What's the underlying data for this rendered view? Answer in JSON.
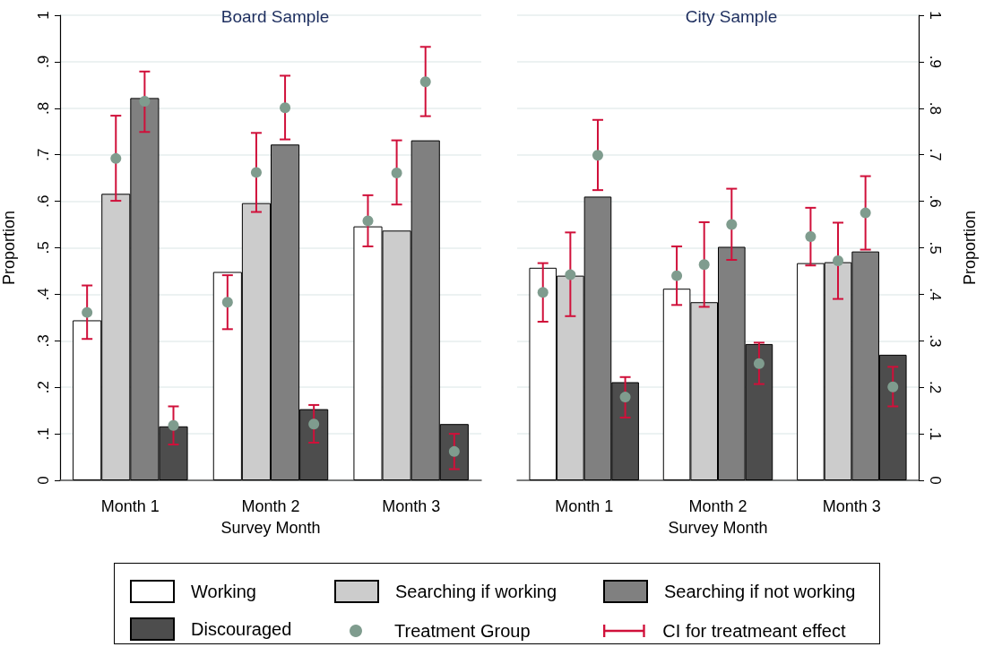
{
  "chart_data": [
    {
      "type": "bar",
      "title": "Board Sample",
      "xlabel": "Survey Month",
      "ylabel": "Proportion",
      "categories": [
        "Month 1",
        "Month 2",
        "Month 3"
      ],
      "series": [
        {
          "name": "Working",
          "color": "#ffffff",
          "values": [
            0.344,
            0.448,
            0.546
          ]
        },
        {
          "name": "Searching if working",
          "color": "#cccccc",
          "values": [
            0.616,
            0.596,
            0.537
          ]
        },
        {
          "name": "Searching if not working",
          "color": "#808080",
          "values": [
            0.822,
            0.722,
            0.731
          ]
        },
        {
          "name": "Discouraged",
          "color": "#4d4d4d",
          "values": [
            0.116,
            0.153,
            0.121
          ]
        },
        {
          "name": "Treatment Group",
          "type": "scatter",
          "color": "#7f9c8e",
          "x": [
            "Month 1",
            "Month 1",
            "Month 1",
            "Month 1",
            "Month 2",
            "Month 2",
            "Month 2",
            "Month 2",
            "Month 3",
            "Month 3",
            "Month 3",
            "Month 3"
          ],
          "values": [
            0.361,
            0.692,
            0.815,
            0.118,
            0.383,
            0.662,
            0.801,
            0.121,
            0.558,
            0.661,
            0.857,
            0.062
          ],
          "errors": [
            [
              0.304,
              0.419
            ],
            [
              0.601,
              0.784
            ],
            [
              0.749,
              0.879
            ],
            [
              0.077,
              0.159
            ],
            [
              0.325,
              0.441
            ],
            [
              0.577,
              0.747
            ],
            [
              0.733,
              0.87
            ],
            [
              0.081,
              0.162
            ],
            [
              0.503,
              0.613
            ],
            [
              0.593,
              0.731
            ],
            [
              0.783,
              0.932
            ],
            [
              0.024,
              0.1
            ]
          ]
        }
      ],
      "ylim": [
        0,
        1
      ],
      "yticks": [
        0,
        {
          "value": 0.1,
          "label": ".1"
        },
        {
          "value": 0.2,
          "label": ".2"
        },
        {
          "value": 0.3,
          "label": ".3"
        },
        {
          "value": 0.4,
          "label": ".4"
        },
        {
          "value": 0.5,
          "label": ".5"
        },
        {
          "value": 0.6,
          "label": ".6"
        },
        {
          "value": 0.7,
          "label": ".7"
        },
        {
          "value": 0.8,
          "label": ".8"
        },
        {
          "value": 0.9,
          "label": ".9"
        },
        1
      ],
      "grid": "y",
      "legend": "bottom",
      "marker": "circle",
      "annotations": [
        "CI for treatmeant effect"
      ]
    },
    {
      "type": "bar",
      "title": "City Sample",
      "xlabel": "Survey Month",
      "y2label": "Proportion",
      "categories": [
        "Month 1",
        "Month 2",
        "Month 3"
      ],
      "series": [
        {
          "color": "#ffffff",
          "axis": "y2",
          "values": [
            0.457,
            0.412,
            0.467
          ]
        },
        {
          "color": "#cccccc",
          "axis": "y2",
          "values": [
            0.44,
            0.383,
            0.469
          ]
        },
        {
          "color": "#808080",
          "axis": "y2",
          "values": [
            0.61,
            0.502,
            0.492
          ]
        },
        {
          "color": "#4d4d4d",
          "axis": "y2",
          "values": [
            0.211,
            0.293,
            0.27
          ]
        },
        {
          "type": "scatter",
          "color": "#7f9c8e",
          "axis": "y2",
          "x": [
            "Month 1",
            "Month 1",
            "Month 1",
            "Month 1",
            "Month 2",
            "Month 2",
            "Month 2",
            "Month 2",
            "Month 3",
            "Month 3",
            "Month 3",
            "Month 3"
          ],
          "values": [
            0.404,
            0.442,
            0.699,
            0.179,
            0.44,
            0.464,
            0.55,
            0.251,
            0.524,
            0.472,
            0.575,
            0.201
          ],
          "errors": [
            [
              0.341,
              0.467
            ],
            [
              0.353,
              0.533
            ],
            [
              0.624,
              0.775
            ],
            [
              0.135,
              0.222
            ],
            [
              0.377,
              0.503
            ],
            [
              0.373,
              0.555
            ],
            [
              0.474,
              0.627
            ],
            [
              0.207,
              0.296
            ],
            [
              0.462,
              0.586
            ],
            [
              0.39,
              0.554
            ],
            [
              0.496,
              0.654
            ],
            [
              0.159,
              0.244
            ]
          ]
        }
      ],
      "y2lim": [
        0,
        1
      ],
      "y2ticks": [
        0,
        {
          "value": 0.1,
          "label": ".1"
        },
        {
          "value": 0.2,
          "label": ".2"
        },
        {
          "value": 0.3,
          "label": ".3"
        },
        {
          "value": 0.4,
          "label": ".4"
        },
        {
          "value": 0.5,
          "label": ".5"
        },
        {
          "value": 0.6,
          "label": ".6"
        },
        {
          "value": 0.7,
          "label": ".7"
        },
        {
          "value": 0.8,
          "label": ".8"
        },
        {
          "value": 0.9,
          "label": ".9"
        },
        1
      ],
      "grid": "y",
      "marker": "circle"
    }
  ]
}
